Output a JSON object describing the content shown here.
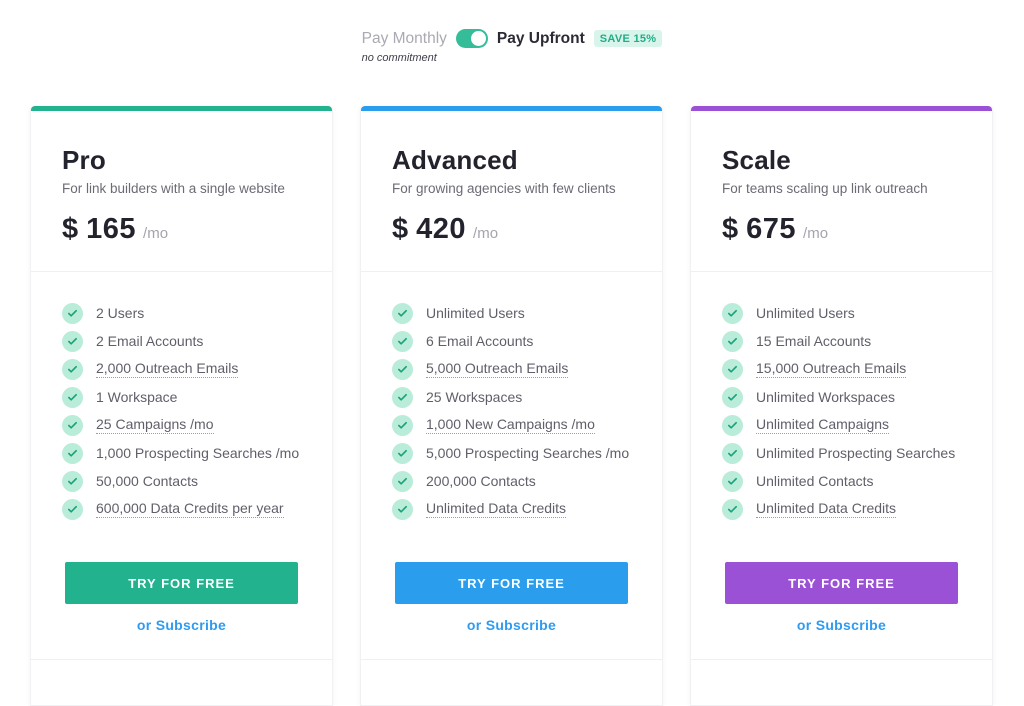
{
  "billing_toggle": {
    "monthly_label": "Pay Monthly",
    "upfront_label": "Pay Upfront",
    "badge": "SAVE 15%",
    "note": "no commitment",
    "selected": "upfront"
  },
  "colors": {
    "toggle": "#35bd9a",
    "badge_bg": "#d9f4ea",
    "badge_text": "#21ad88",
    "check_circle_bg": "#b9ecd9",
    "check_mark": "#1ba27a",
    "subscribe_link": "#2f9bf0",
    "teal_accent": "#22b28e",
    "blue_accent": "#2b9ded",
    "purple_accent": "#9b51d6"
  },
  "plans": [
    {
      "name": "Pro",
      "description": "For link builders with a single website",
      "currency": "$",
      "price": "165",
      "period": "/mo",
      "accent_color": "#22b28e",
      "features": [
        {
          "label": "2 Users",
          "underline": false
        },
        {
          "label": "2 Email Accounts",
          "underline": false
        },
        {
          "label": "2,000 Outreach Emails",
          "underline": true
        },
        {
          "label": "1 Workspace",
          "underline": false
        },
        {
          "label": "25 Campaigns /mo",
          "underline": true
        },
        {
          "label": "1,000 Prospecting Searches /mo",
          "underline": false
        },
        {
          "label": "50,000 Contacts",
          "underline": false
        },
        {
          "label": "600,000 Data Credits per year",
          "underline": true
        }
      ],
      "cta_label": "TRY FOR FREE",
      "subscribe_label": "or Subscribe"
    },
    {
      "name": "Advanced",
      "description": "For growing agencies with few clients",
      "currency": "$",
      "price": "420",
      "period": "/mo",
      "accent_color": "#2b9ded",
      "features": [
        {
          "label": "Unlimited Users",
          "underline": false
        },
        {
          "label": "6 Email Accounts",
          "underline": false
        },
        {
          "label": "5,000 Outreach Emails",
          "underline": true
        },
        {
          "label": "25 Workspaces",
          "underline": false
        },
        {
          "label": "1,000 New Campaigns /mo",
          "underline": true
        },
        {
          "label": "5,000 Prospecting Searches /mo",
          "underline": false
        },
        {
          "label": "200,000 Contacts",
          "underline": false
        },
        {
          "label": "Unlimited Data Credits",
          "underline": true
        }
      ],
      "cta_label": "TRY FOR FREE",
      "subscribe_label": "or Subscribe"
    },
    {
      "name": "Scale",
      "description": "For teams scaling up link outreach",
      "currency": "$",
      "price": "675",
      "period": "/mo",
      "accent_color": "#9b51d6",
      "features": [
        {
          "label": "Unlimited Users",
          "underline": false
        },
        {
          "label": "15 Email Accounts",
          "underline": false
        },
        {
          "label": "15,000 Outreach Emails",
          "underline": true
        },
        {
          "label": "Unlimited Workspaces",
          "underline": false
        },
        {
          "label": "Unlimited Campaigns",
          "underline": true
        },
        {
          "label": "Unlimited Prospecting Searches",
          "underline": false
        },
        {
          "label": "Unlimited Contacts",
          "underline": false
        },
        {
          "label": "Unlimited Data Credits",
          "underline": true
        }
      ],
      "cta_label": "TRY FOR FREE",
      "subscribe_label": "or Subscribe"
    }
  ]
}
